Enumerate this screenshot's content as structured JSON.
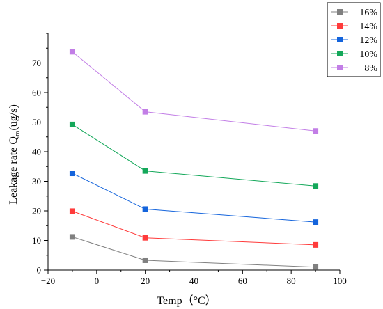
{
  "chart_data": {
    "type": "line",
    "xlabel": "Temp（°C）",
    "ylabel_main": "Leakage rate Q",
    "ylabel_sub": "m",
    "ylabel_unit": "(ug/s)",
    "xlim": [
      -20,
      100
    ],
    "ylim": [
      0,
      80
    ],
    "xticks": [
      -20,
      0,
      20,
      40,
      60,
      80,
      100
    ],
    "yticks": [
      0,
      10,
      20,
      30,
      40,
      50,
      60,
      70
    ],
    "x": [
      -10,
      20,
      90
    ],
    "grid": false,
    "legend_position": "top-right",
    "series": [
      {
        "name": "16%",
        "color": "#808080",
        "values": [
          11.2,
          3.3,
          1.0
        ]
      },
      {
        "name": "14%",
        "color": "#ff3b3b",
        "values": [
          19.9,
          10.9,
          8.5
        ]
      },
      {
        "name": "12%",
        "color": "#1464dc",
        "values": [
          32.7,
          20.6,
          16.2
        ]
      },
      {
        "name": "10%",
        "color": "#14a85a",
        "values": [
          49.2,
          33.5,
          28.4
        ]
      },
      {
        "name": "8%",
        "color": "#c27ee6",
        "values": [
          73.8,
          53.5,
          47.0
        ]
      }
    ]
  }
}
